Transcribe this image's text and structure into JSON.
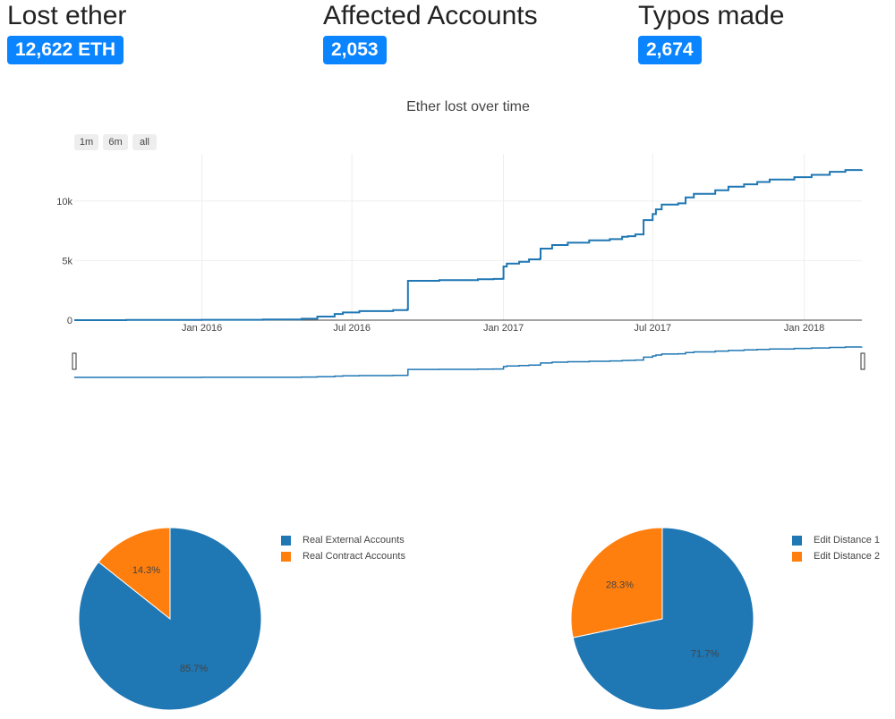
{
  "stats": [
    {
      "title": "Lost ether",
      "value": "12,622 ETH"
    },
    {
      "title": "Affected Accounts",
      "value": "2,053"
    },
    {
      "title": "Typos made",
      "value": "2,674"
    }
  ],
  "colors": {
    "badge": "#0a84ff",
    "series_blue": "#1f77b4",
    "series_orange": "#ff7f0e"
  },
  "line_chart": {
    "title": "Ether lost over time",
    "range_buttons": [
      "1m",
      "6m",
      "all"
    ],
    "x_ticks": [
      "Jan 2016",
      "Jul 2016",
      "Jan 2017",
      "Jul 2017",
      "Jan 2018"
    ],
    "y_ticks": [
      "0",
      "5k",
      "10k"
    ]
  },
  "chart_data": [
    {
      "type": "line",
      "title": "Ether lost over time",
      "xlabel": "",
      "ylabel": "",
      "xlim": [
        "2015-07-30",
        "2018-03-12"
      ],
      "ylim": [
        0,
        13960
      ],
      "grid": true,
      "series": [
        {
          "x": [
            "2015-07-30",
            "2015-10-01",
            "2016-01-01",
            "2016-03-15",
            "2016-05-01",
            "2016-05-20",
            "2016-06-10",
            "2016-06-20",
            "2016-07-10",
            "2016-08-20",
            "2016-09-06",
            "2016-09-07",
            "2016-10-15",
            "2016-12-01",
            "2016-12-20",
            "2016-12-31",
            "2017-01-01",
            "2017-01-05",
            "2017-01-20",
            "2017-02-01",
            "2017-02-14",
            "2017-02-15",
            "2017-03-01",
            "2017-03-20",
            "2017-04-15",
            "2017-05-10",
            "2017-05-25",
            "2017-06-01",
            "2017-06-10",
            "2017-06-20",
            "2017-07-01",
            "2017-07-05",
            "2017-07-12",
            "2017-08-01",
            "2017-08-10",
            "2017-08-20",
            "2017-09-15",
            "2017-10-01",
            "2017-10-20",
            "2017-11-05",
            "2017-11-20",
            "2017-12-20",
            "2018-01-10",
            "2018-02-01",
            "2018-02-20",
            "2018-03-12"
          ],
          "y": [
            0,
            20,
            30,
            60,
            120,
            300,
            520,
            650,
            760,
            840,
            880,
            3300,
            3360,
            3430,
            3460,
            3480,
            4500,
            4750,
            4900,
            5100,
            5150,
            6000,
            6300,
            6500,
            6700,
            6800,
            7000,
            7050,
            7200,
            8400,
            8900,
            9300,
            9700,
            9800,
            10300,
            10600,
            10900,
            11200,
            11400,
            11600,
            11800,
            12000,
            12200,
            12450,
            12600,
            12622
          ]
        }
      ]
    },
    {
      "type": "pie",
      "title": "",
      "labels": [
        "Real External Accounts",
        "Real Contract Accounts"
      ],
      "values": [
        85.7,
        14.3
      ],
      "colors": [
        "#1f77b4",
        "#ff7f0e"
      ],
      "legend": "right"
    },
    {
      "type": "pie",
      "title": "",
      "labels": [
        "Edit Distance 1",
        "Edit Distance 2"
      ],
      "values": [
        71.7,
        28.3
      ],
      "colors": [
        "#1f77b4",
        "#ff7f0e"
      ],
      "legend": "right"
    }
  ]
}
